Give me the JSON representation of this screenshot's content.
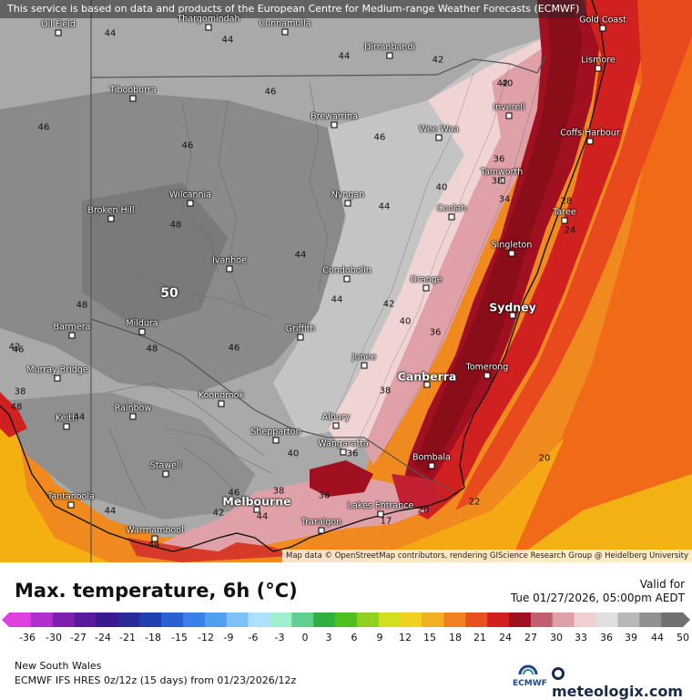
{
  "disclaimer": "This service is based on data and products of the European Centre for Medium-range Weather Forecasts (ECMWF)",
  "attribution": "Map data © OpenStreetMap contributors, rendering GIScience Research Group @ Heidelberg University",
  "title": "Max. temperature, 6h (°C)",
  "valid_label": "Valid for",
  "valid_date": "Tue 01/27/2026, 05:00pm AEDT",
  "region": "New South Wales",
  "model_line": "ECMWF IFS HRES 0z/12z (15 days) from  01/23/2026/12z",
  "ecmwf_logo": "ECMWF",
  "brand": "meteologix.com",
  "legend": {
    "ticks": [
      "-36",
      "-30",
      "-27",
      "-24",
      "-21",
      "-18",
      "-15",
      "-12",
      "-9",
      "-6",
      "-3",
      "0",
      "3",
      "6",
      "9",
      "12",
      "15",
      "18",
      "21",
      "24",
      "27",
      "30",
      "33",
      "36",
      "39",
      "44",
      "50"
    ],
    "colors": [
      "#e040e0",
      "#b030d0",
      "#8020b0",
      "#5a1aa0",
      "#3a1a90",
      "#2a2a9a",
      "#2040b0",
      "#2a60d0",
      "#3a80e8",
      "#50a0f0",
      "#80c0f8",
      "#b0e0ff",
      "#a0f0d0",
      "#60d090",
      "#30b040",
      "#50c020",
      "#90d020",
      "#d0e020",
      "#f0d020",
      "#f0b020",
      "#f08020",
      "#e85020",
      "#d02020",
      "#a01020",
      "#c06070",
      "#e0a0a8",
      "#f0d0d0",
      "#e0e0e0",
      "#b8b8b8",
      "#909090",
      "#707070"
    ]
  },
  "cities": [
    {
      "name": "Gold Coast"
    },
    {
      "name": "Lismore"
    },
    {
      "name": "Coffs Harbour"
    },
    {
      "name": "Inverell"
    },
    {
      "name": "Tamworth"
    },
    {
      "name": "Wee Waa"
    },
    {
      "name": "Coolah"
    },
    {
      "name": "Taree"
    },
    {
      "name": "Singleton"
    },
    {
      "name": "Sydney"
    },
    {
      "name": "Orange"
    },
    {
      "name": "Canberra"
    },
    {
      "name": "Tomerong"
    },
    {
      "name": "Bombala"
    },
    {
      "name": "Lakes Entrance"
    },
    {
      "name": "Traralgon"
    },
    {
      "name": "Melbourne"
    },
    {
      "name": "Warrnambool"
    },
    {
      "name": "Wangaratta"
    },
    {
      "name": "Albury"
    },
    {
      "name": "Shepparton"
    },
    {
      "name": "Junee"
    },
    {
      "name": "Griffith"
    },
    {
      "name": "Condobolin"
    },
    {
      "name": "Nyngan"
    },
    {
      "name": "Brewarrina"
    },
    {
      "name": "Dirranbandi"
    },
    {
      "name": "Cunnamulla"
    },
    {
      "name": "Thargomindah"
    },
    {
      "name": "Tibooburra"
    },
    {
      "name": "Wilcannia"
    },
    {
      "name": "Broken Hill"
    },
    {
      "name": "Ivanhoe"
    },
    {
      "name": "Mildura"
    },
    {
      "name": "Barmera"
    },
    {
      "name": "Murray Bridge"
    },
    {
      "name": "Keith"
    },
    {
      "name": "Rainbow"
    },
    {
      "name": "Koondrook"
    },
    {
      "name": "Stawell"
    },
    {
      "name": "Tantanoola"
    },
    {
      "name": "Oil Field"
    }
  ],
  "temperature_labels": [
    {
      "value": "44"
    },
    {
      "value": "44"
    },
    {
      "value": "44"
    },
    {
      "value": "42"
    },
    {
      "value": "46"
    },
    {
      "value": "46"
    },
    {
      "value": "46"
    },
    {
      "value": "46"
    },
    {
      "value": "48"
    },
    {
      "value": "48"
    },
    {
      "value": "46"
    },
    {
      "value": "44"
    },
    {
      "value": "50"
    },
    {
      "value": "48"
    },
    {
      "value": "44"
    },
    {
      "value": "42"
    },
    {
      "value": "40"
    },
    {
      "value": "46"
    },
    {
      "value": "48"
    },
    {
      "value": "42"
    },
    {
      "value": "38"
    },
    {
      "value": "36"
    },
    {
      "value": "38"
    },
    {
      "value": "40"
    },
    {
      "value": "36"
    },
    {
      "value": "44"
    },
    {
      "value": "42"
    },
    {
      "value": "40"
    },
    {
      "value": "38"
    },
    {
      "value": "36"
    },
    {
      "value": "40"
    },
    {
      "value": "38"
    },
    {
      "value": "34"
    },
    {
      "value": "28"
    },
    {
      "value": "24"
    },
    {
      "value": "20"
    },
    {
      "value": "22"
    },
    {
      "value": "20"
    },
    {
      "value": "17"
    },
    {
      "value": "36"
    },
    {
      "value": "44"
    },
    {
      "value": "44"
    },
    {
      "value": "42"
    },
    {
      "value": "44"
    },
    {
      "value": "46"
    },
    {
      "value": "44"
    }
  ]
}
